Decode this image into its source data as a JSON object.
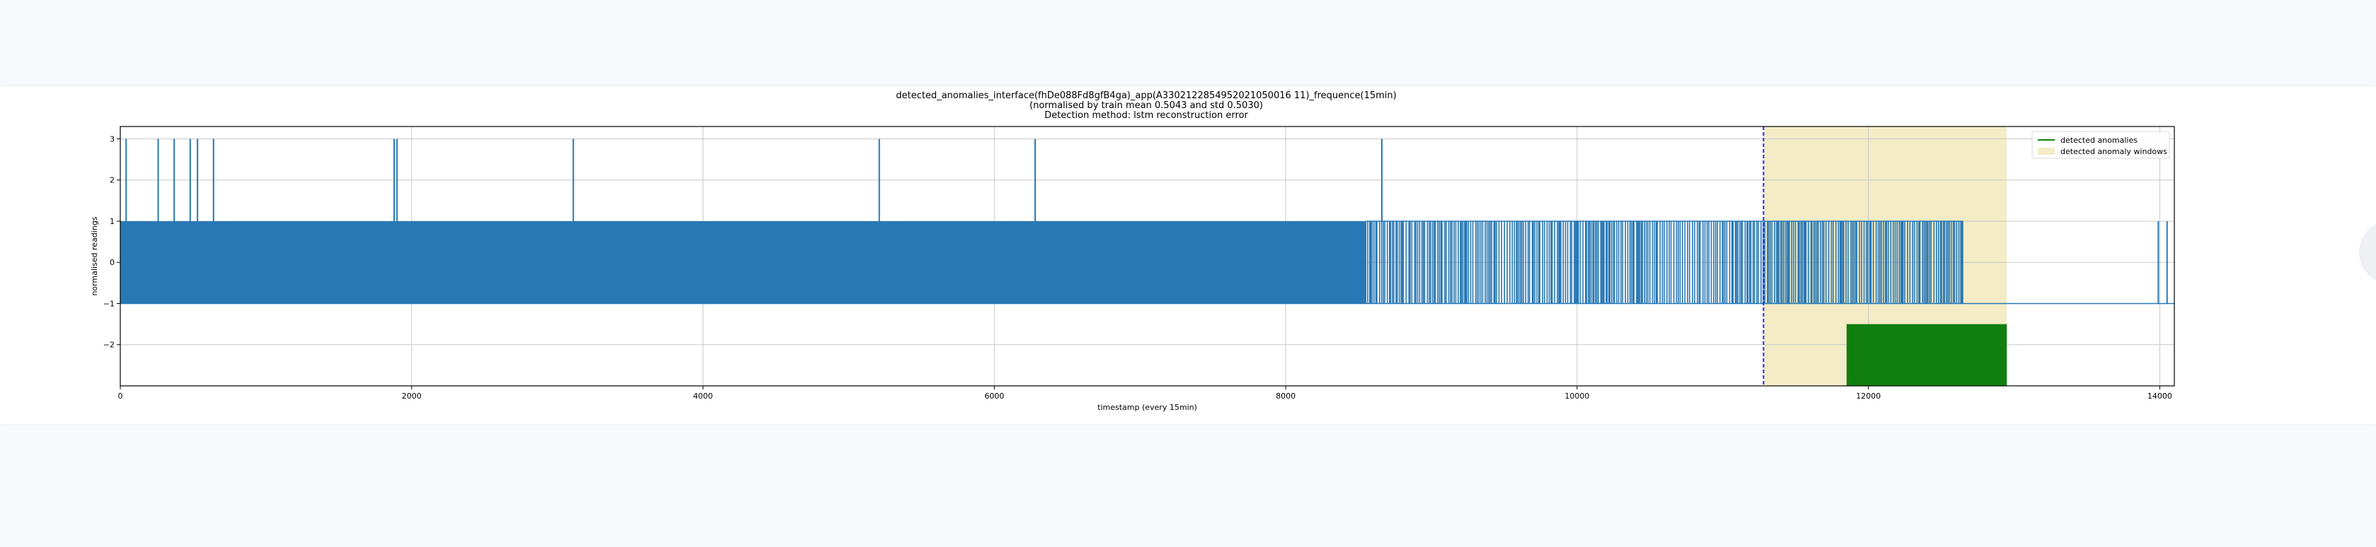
{
  "chart_data": {
    "type": "line",
    "title_lines": [
      "detected_anomalies_interface(fhDe088Fd8gfB4ga)_app(A3302122854952021050016 11)_frequence(15min)",
      "(normalised by train mean 0.5043 and std 0.5030)",
      "Detection method: lstm reconstruction error"
    ],
    "xlabel": "timestamp (every 15min)",
    "ylabel": "normalised readings",
    "xlim": [
      0,
      14100
    ],
    "ylim": [
      -3,
      3.3
    ],
    "x_ticks": [
      0,
      2000,
      4000,
      6000,
      8000,
      10000,
      12000,
      14000
    ],
    "y_ticks": [
      -2,
      -1,
      0,
      1,
      2,
      3
    ],
    "grid": true,
    "legend_position": "top-right",
    "legend": [
      {
        "label": "detected anomalies",
        "kind": "line",
        "color": "#107f10"
      },
      {
        "label": "detected anomaly windows",
        "kind": "patch",
        "color": "#f3ecc6"
      }
    ],
    "series": [
      {
        "color": "#2878b5",
        "baseline_low": -1,
        "baseline_high": 1,
        "dense_band_range": [
          0,
          8550
        ],
        "sparse_band_range": [
          8550,
          12650
        ],
        "flat_range": [
          12650,
          14100
        ],
        "spikes_to_high": [
          40,
          260,
          370,
          480,
          530,
          640,
          1880,
          1900,
          3110,
          5210,
          6280,
          8660
        ],
        "late_spikes_to_one": [
          13990,
          14050
        ]
      }
    ],
    "anomaly_window": {
      "x_start": 11280,
      "x_end": 12950,
      "color": "#f3ecc6"
    },
    "threshold_marker": {
      "x": 11280,
      "color": "#2a2ae6",
      "style": "dashed"
    },
    "detected_anomalies": {
      "x_start": 11850,
      "x_end": 12950,
      "y_top": -1.5,
      "y_bottom": -3,
      "color": "#107f10"
    }
  }
}
